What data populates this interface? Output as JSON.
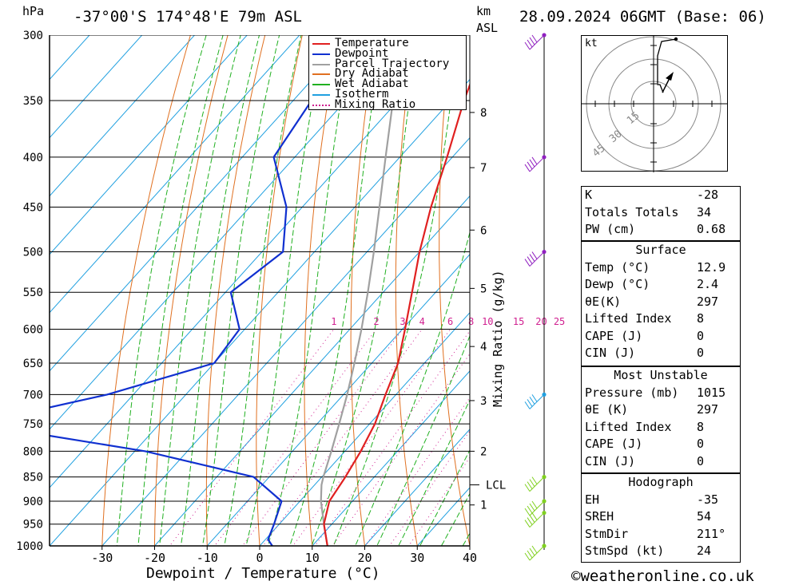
{
  "header": {
    "pressure_unit": "hPa",
    "location": "-37°00'S  174°48'E  79m  ASL",
    "height_unit": "km",
    "height_unit2": "ASL",
    "datetime": "28.09.2024  06GMT  (Base: 06)"
  },
  "chart_data": {
    "type": "line",
    "title": "",
    "xlabel": "Dewpoint / Temperature (°C)",
    "ylabel": "hPa",
    "y_scale": "log-pressure (skew-T)",
    "x_ticks": [
      -30,
      -20,
      -10,
      0,
      10,
      20,
      30,
      40
    ],
    "x_tick_labels": [
      "-30",
      "-20",
      "-10",
      "0",
      "10",
      "20",
      "30",
      "40"
    ],
    "xlim": [
      -40,
      40
    ],
    "ylim": [
      1000,
      300
    ],
    "pressure_levels": [
      300,
      350,
      400,
      450,
      500,
      550,
      600,
      650,
      700,
      750,
      800,
      850,
      900,
      950,
      1000
    ],
    "pressure_labels": [
      "300",
      "350",
      "400",
      "450",
      "500",
      "550",
      "600",
      "650",
      "700",
      "750",
      "800",
      "850",
      "900",
      "950",
      "1000"
    ],
    "km_ticks": [
      {
        "km": "1",
        "p": 908
      },
      {
        "km": "2",
        "p": 800
      },
      {
        "km": "3",
        "p": 710
      },
      {
        "km": "4",
        "p": 625
      },
      {
        "km": "5",
        "p": 545
      },
      {
        "km": "6",
        "p": 475
      },
      {
        "km": "7",
        "p": 410
      },
      {
        "km": "8",
        "p": 360
      }
    ],
    "lcl": {
      "label": "LCL",
      "p": 866
    },
    "mixing_ratio_axis_label": "Mixing Ratio (g/kg)",
    "mixing_ratio_labels": [
      "1",
      "2",
      "3",
      "4",
      "6",
      "8",
      "10",
      "15",
      "20",
      "25"
    ],
    "mixing_ratio_values": [
      1,
      2,
      3,
      4,
      6,
      8,
      10,
      15,
      20,
      25
    ],
    "legend": {
      "placement": "top-center",
      "entries": [
        {
          "name": "Temperature",
          "color": "#e02020",
          "style": "solid"
        },
        {
          "name": "Dewpoint",
          "color": "#1030d0",
          "style": "solid"
        },
        {
          "name": "Parcel Trajectory",
          "color": "#a0a0a0",
          "style": "solid"
        },
        {
          "name": "Dry Adiabat",
          "color": "#e07020",
          "style": "solid"
        },
        {
          "name": "Wet Adiabat",
          "color": "#20b020",
          "style": "solid"
        },
        {
          "name": "Isotherm",
          "color": "#20a0e0",
          "style": "solid"
        },
        {
          "name": "Mixing Ratio",
          "color": "#d02090",
          "style": "dotted"
        }
      ]
    },
    "series": [
      {
        "name": "Temperature",
        "points": [
          {
            "p": 1000,
            "t": 12.9
          },
          {
            "p": 950,
            "t": 8.5
          },
          {
            "p": 900,
            "t": 5.6
          },
          {
            "p": 850,
            "t": 4.5
          },
          {
            "p": 800,
            "t": 3.0
          },
          {
            "p": 750,
            "t": 1.0
          },
          {
            "p": 700,
            "t": -2.0
          },
          {
            "p": 650,
            "t": -5.0
          },
          {
            "p": 600,
            "t": -9.5
          },
          {
            "p": 550,
            "t": -14.5
          },
          {
            "p": 500,
            "t": -20.0
          },
          {
            "p": 450,
            "t": -25.5
          },
          {
            "p": 400,
            "t": -31.0
          },
          {
            "p": 350,
            "t": -37.5
          },
          {
            "p": 300,
            "t": -44.0
          }
        ]
      },
      {
        "name": "Dewpoint",
        "points": [
          {
            "p": 1000,
            "t": 2.4
          },
          {
            "p": 985,
            "t": 0.5
          },
          {
            "p": 950,
            "t": -1.0
          },
          {
            "p": 900,
            "t": -3.5
          },
          {
            "p": 850,
            "t": -13.0
          },
          {
            "p": 800,
            "t": -38.0
          },
          {
            "p": 750,
            "t": -75.0
          },
          {
            "p": 700,
            "t": -55.0
          },
          {
            "p": 650,
            "t": -40.0
          },
          {
            "p": 600,
            "t": -41.0
          },
          {
            "p": 550,
            "t": -49.0
          },
          {
            "p": 500,
            "t": -46.0
          },
          {
            "p": 450,
            "t": -53.0
          },
          {
            "p": 400,
            "t": -64.0
          },
          {
            "p": 350,
            "t": -66.5
          },
          {
            "p": 300,
            "t": -75.0
          }
        ]
      },
      {
        "name": "Parcel Trajectory",
        "points": [
          {
            "p": 1000,
            "t": 12.9
          },
          {
            "p": 950,
            "t": 8.5
          },
          {
            "p": 900,
            "t": 4.0
          },
          {
            "p": 866,
            "t": 1.3
          },
          {
            "p": 850,
            "t": 0.3
          },
          {
            "p": 800,
            "t": -2.6
          },
          {
            "p": 750,
            "t": -5.8
          },
          {
            "p": 700,
            "t": -9.3
          },
          {
            "p": 650,
            "t": -13.3
          },
          {
            "p": 600,
            "t": -17.8
          },
          {
            "p": 550,
            "t": -22.9
          },
          {
            "p": 500,
            "t": -28.7
          },
          {
            "p": 450,
            "t": -35.3
          },
          {
            "p": 400,
            "t": -42.7
          },
          {
            "p": 350,
            "t": -51.0
          },
          {
            "p": 300,
            "t": -60.0
          }
        ]
      }
    ],
    "wind_barbs": [
      {
        "p": 300,
        "color": "#9020c0"
      },
      {
        "p": 400,
        "color": "#9020c0"
      },
      {
        "p": 500,
        "color": "#9020c0"
      },
      {
        "p": 700,
        "color": "#20a0e0"
      },
      {
        "p": 850,
        "color": "#80d020"
      },
      {
        "p": 900,
        "color": "#80d020"
      },
      {
        "p": 925,
        "color": "#80d020"
      },
      {
        "p": 1000,
        "color": "#80d020"
      }
    ],
    "hodograph": {
      "unit_label": "kt",
      "ring_labels": [
        "15",
        "30",
        "45"
      ]
    }
  },
  "indices": {
    "top": [
      {
        "key": "K",
        "value": "-28"
      },
      {
        "key": "Totals Totals",
        "value": "34"
      },
      {
        "key": "PW (cm)",
        "value": "0.68"
      }
    ],
    "surface": {
      "title": "Surface",
      "rows": [
        {
          "key": "Temp (°C)",
          "value": "12.9"
        },
        {
          "key": "Dewp (°C)",
          "value": "2.4"
        },
        {
          "key": "θE(K)",
          "value": "297"
        },
        {
          "key": "Lifted Index",
          "value": "8"
        },
        {
          "key": "CAPE (J)",
          "value": "0"
        },
        {
          "key": "CIN (J)",
          "value": "0"
        }
      ]
    },
    "most_unstable": {
      "title": "Most Unstable",
      "rows": [
        {
          "key": "Pressure (mb)",
          "value": "1015"
        },
        {
          "key": "θE (K)",
          "value": "297"
        },
        {
          "key": "Lifted Index",
          "value": "8"
        },
        {
          "key": "CAPE (J)",
          "value": "0"
        },
        {
          "key": "CIN (J)",
          "value": "0"
        }
      ]
    },
    "hodograph": {
      "title": "Hodograph",
      "rows": [
        {
          "key": "EH",
          "value": "-35"
        },
        {
          "key": "SREH",
          "value": "54"
        },
        {
          "key": "StmDir",
          "value": "211°"
        },
        {
          "key": "StmSpd (kt)",
          "value": "24"
        }
      ]
    }
  },
  "footer": {
    "copyright_symbol": "©",
    "site": "weatheronline.co.uk"
  }
}
